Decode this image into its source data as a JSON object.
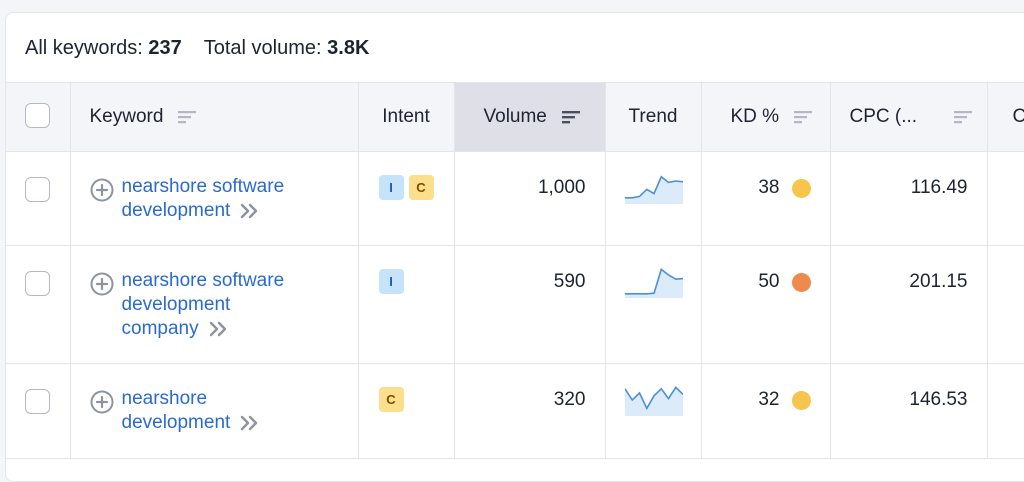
{
  "summary": {
    "all_keywords_label": "All keywords:",
    "all_keywords_value": "237",
    "total_volume_label": "Total volume:",
    "total_volume_value": "3.8K"
  },
  "columns": {
    "keyword": "Keyword",
    "intent": "Intent",
    "volume": "Volume",
    "trend": "Trend",
    "kd": "KD %",
    "cpc": "CPC (...",
    "more": "C"
  },
  "colors": {
    "link": "#2a6ad0",
    "kd_easy": "#f5c54c",
    "kd_medium": "#ef8a4f",
    "trend_line": "#4a90d9",
    "trend_fill": "#dcebfa"
  },
  "rows": [
    {
      "keyword_line1": "nearshore software",
      "keyword_line2": "development",
      "keyword_line3": "",
      "intents": [
        "I",
        "C"
      ],
      "volume": "1,000",
      "trend": [
        0.15,
        0.15,
        0.2,
        0.45,
        0.3,
        0.9,
        0.7,
        0.75,
        0.72
      ],
      "kd": "38",
      "cpc": "116.49"
    },
    {
      "keyword_line1": "nearshore software",
      "keyword_line2": "development",
      "keyword_line3": "company",
      "intents": [
        "I"
      ],
      "volume": "590",
      "trend": [
        0.08,
        0.08,
        0.08,
        0.08,
        0.1,
        0.95,
        0.75,
        0.6,
        0.62
      ],
      "kd": "50",
      "cpc": "201.15"
    },
    {
      "keyword_line1": "nearshore",
      "keyword_line2": "development",
      "keyword_line3": "",
      "intents": [
        "C"
      ],
      "volume": "320",
      "trend": [
        0.9,
        0.5,
        0.75,
        0.2,
        0.65,
        0.9,
        0.55,
        0.95,
        0.7
      ],
      "kd": "32",
      "cpc": "146.53"
    }
  ]
}
